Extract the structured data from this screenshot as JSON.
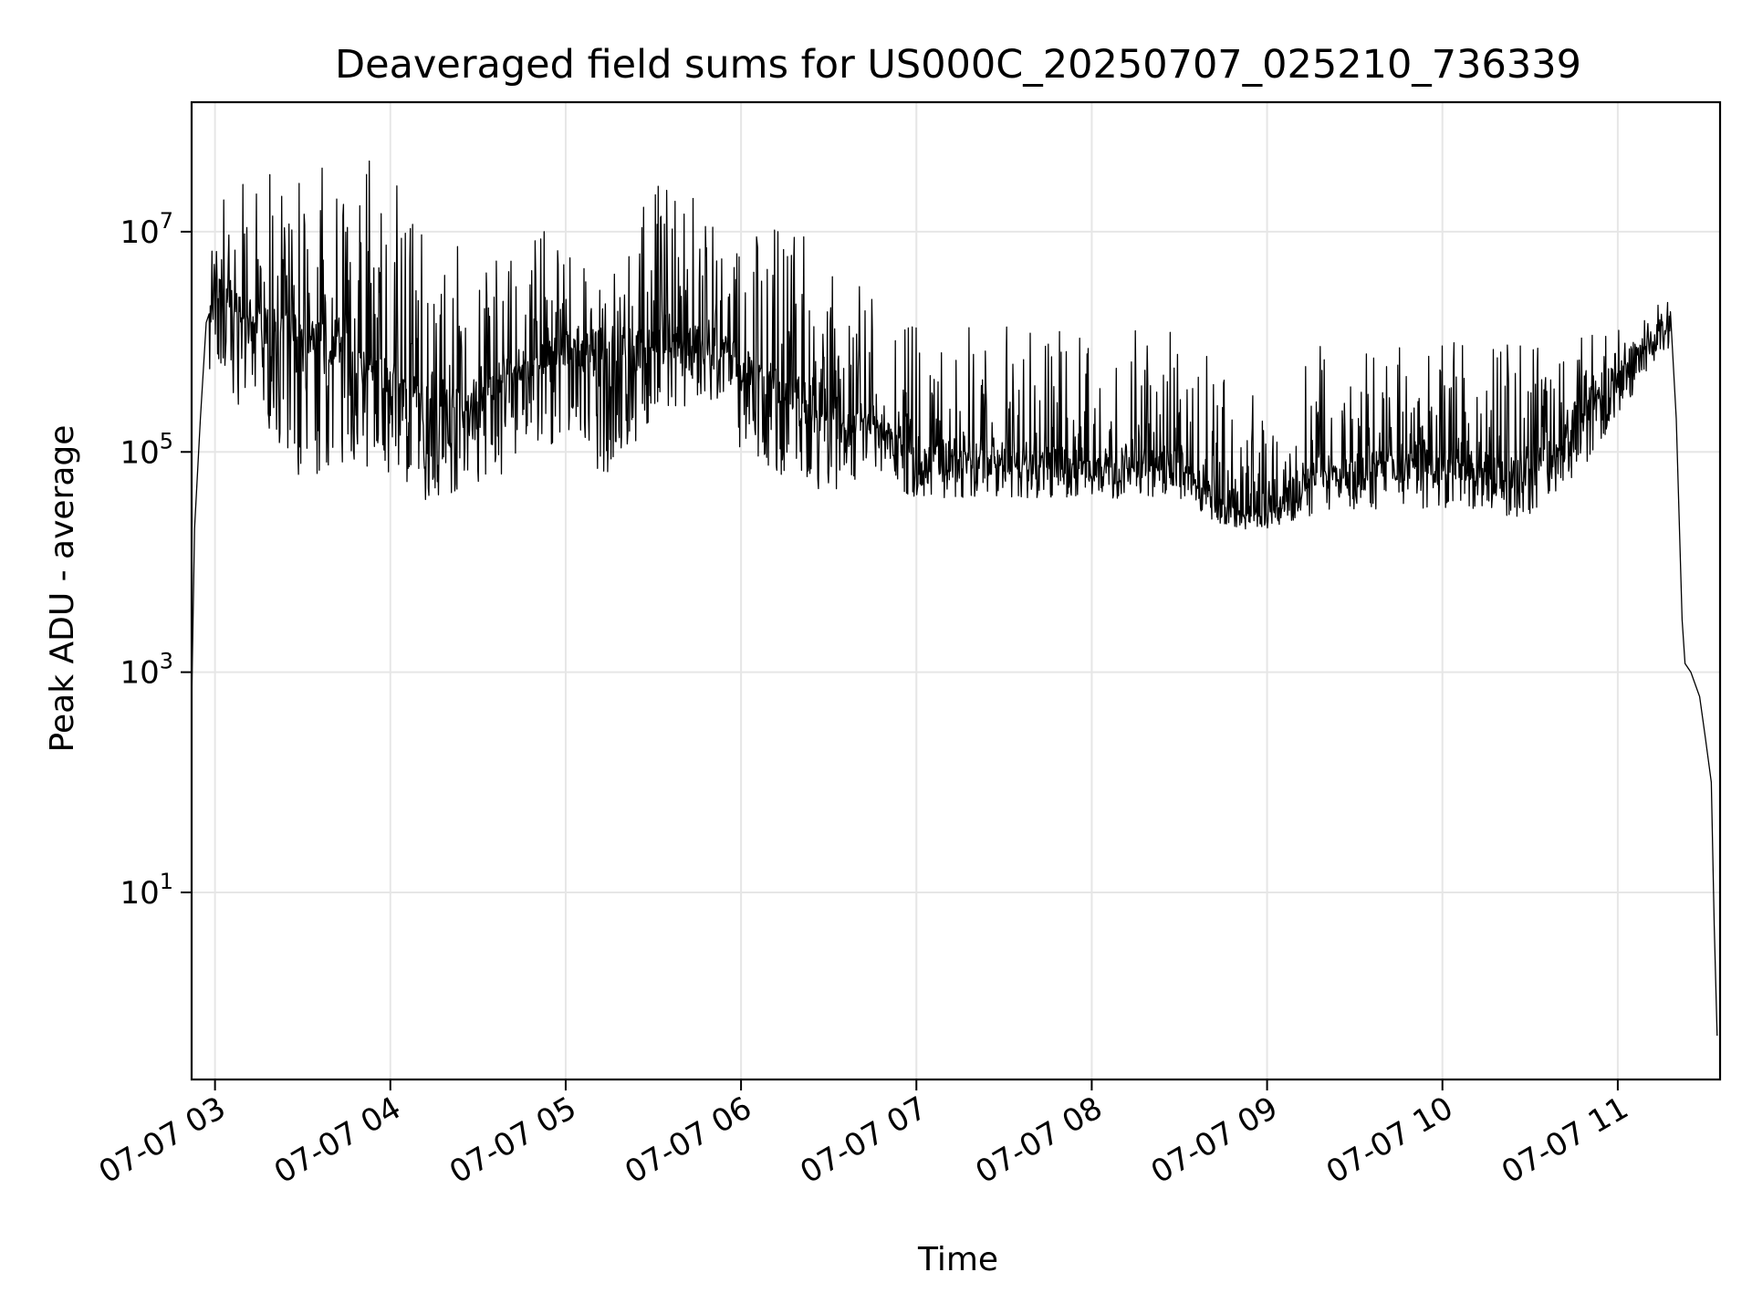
{
  "chart_data": {
    "type": "line",
    "title": "Deaveraged field sums for US000C_20250707_025210_736339",
    "xlabel": "Time",
    "ylabel": "Peak ADU - average",
    "y_scale": "log",
    "ylim": [
      0.2,
      150000000.0
    ],
    "xlim": [
      "07-07 02:52",
      "07-07 11:35"
    ],
    "grid": true,
    "legend": "none",
    "line_color": "#000000",
    "x_ticks": [
      {
        "value": "07-07 03:00",
        "label": "07-07 03"
      },
      {
        "value": "07-07 04:00",
        "label": "07-07 04"
      },
      {
        "value": "07-07 05:00",
        "label": "07-07 05"
      },
      {
        "value": "07-07 06:00",
        "label": "07-07 06"
      },
      {
        "value": "07-07 07:00",
        "label": "07-07 07"
      },
      {
        "value": "07-07 08:00",
        "label": "07-07 08"
      },
      {
        "value": "07-07 09:00",
        "label": "07-07 09"
      },
      {
        "value": "07-07 10:00",
        "label": "07-07 10"
      },
      {
        "value": "07-07 11:00",
        "label": "07-07 11"
      }
    ],
    "y_ticks": [
      {
        "value": 10,
        "base": "10",
        "exp": "1"
      },
      {
        "value": 1000,
        "base": "10",
        "exp": "3"
      },
      {
        "value": 100000,
        "base": "10",
        "exp": "5"
      },
      {
        "value": 10000000,
        "base": "10",
        "exp": "7"
      }
    ],
    "series": [
      {
        "points": [
          [
            "07-07 02:52",
            500
          ],
          [
            "07-07 02:53",
            20000
          ],
          [
            "07-07 02:55",
            200000
          ],
          [
            "07-07 02:57",
            1500000
          ],
          [
            "07-07 03:00",
            3000000
          ],
          [
            "07-07 03:07",
            2000000
          ],
          [
            "07-07 03:15",
            1500000
          ],
          [
            "07-07 03:22",
            1300000
          ],
          [
            "07-07 03:30",
            1200000
          ],
          [
            "07-07 03:37",
            1000000
          ],
          [
            "07-07 03:45",
            800000
          ],
          [
            "07-07 03:52",
            550000
          ],
          [
            "07-07 04:00",
            450000
          ],
          [
            "07-07 04:07",
            350000
          ],
          [
            "07-07 04:15",
            280000
          ],
          [
            "07-07 04:22",
            280000
          ],
          [
            "07-07 04:30",
            320000
          ],
          [
            "07-07 04:37",
            450000
          ],
          [
            "07-07 04:45",
            600000
          ],
          [
            "07-07 04:52",
            750000
          ],
          [
            "07-07 05:00",
            850000
          ],
          [
            "07-07 05:07",
            900000
          ],
          [
            "07-07 05:15",
            900000
          ],
          [
            "07-07 05:22",
            950000
          ],
          [
            "07-07 05:30",
            1000000
          ],
          [
            "07-07 05:37",
            1000000
          ],
          [
            "07-07 05:45",
            1000000
          ],
          [
            "07-07 05:52",
            900000
          ],
          [
            "07-07 06:00",
            650000
          ],
          [
            "07-07 06:07",
            500000
          ],
          [
            "07-07 06:15",
            380000
          ],
          [
            "07-07 06:22",
            300000
          ],
          [
            "07-07 06:30",
            250000
          ],
          [
            "07-07 06:37",
            200000
          ],
          [
            "07-07 06:45",
            170000
          ],
          [
            "07-07 06:52",
            140000
          ],
          [
            "07-07 07:00",
            100000
          ],
          [
            "07-07 07:07",
            95000
          ],
          [
            "07-07 07:15",
            90000
          ],
          [
            "07-07 07:22",
            90000
          ],
          [
            "07-07 07:30",
            90000
          ],
          [
            "07-07 07:37",
            85000
          ],
          [
            "07-07 07:45",
            85000
          ],
          [
            "07-07 07:52",
            85000
          ],
          [
            "07-07 08:00",
            80000
          ],
          [
            "07-07 08:07",
            80000
          ],
          [
            "07-07 08:15",
            80000
          ],
          [
            "07-07 08:22",
            75000
          ],
          [
            "07-07 08:30",
            70000
          ],
          [
            "07-07 08:37",
            55000
          ],
          [
            "07-07 08:45",
            35000
          ],
          [
            "07-07 08:52",
            28000
          ],
          [
            "07-07 09:00",
            30000
          ],
          [
            "07-07 09:07",
            35000
          ],
          [
            "07-07 09:15",
            60000
          ],
          [
            "07-07 09:22",
            70000
          ],
          [
            "07-07 09:30",
            75000
          ],
          [
            "07-07 09:37",
            80000
          ],
          [
            "07-07 09:45",
            80000
          ],
          [
            "07-07 09:52",
            80000
          ],
          [
            "07-07 10:00",
            80000
          ],
          [
            "07-07 10:07",
            75000
          ],
          [
            "07-07 10:15",
            70000
          ],
          [
            "07-07 10:22",
            65000
          ],
          [
            "07-07 10:30",
            70000
          ],
          [
            "07-07 10:37",
            90000
          ],
          [
            "07-07 10:45",
            150000
          ],
          [
            "07-07 10:52",
            300000
          ],
          [
            "07-07 11:00",
            500000
          ],
          [
            "07-07 11:07",
            800000
          ],
          [
            "07-07 11:15",
            1300000
          ],
          [
            "07-07 11:18",
            1200000
          ],
          [
            "07-07 11:20",
            200000
          ],
          [
            "07-07 11:22",
            3000
          ],
          [
            "07-07 11:23",
            1200
          ],
          [
            "07-07 11:25",
            1000
          ],
          [
            "07-07 11:28",
            600
          ],
          [
            "07-07 11:30",
            250
          ],
          [
            "07-07 11:32",
            100
          ],
          [
            "07-07 11:33",
            5
          ],
          [
            "07-07 11:34",
            0.5
          ]
        ],
        "noise_start": "07-07 02:58",
        "noise_end": "07-07 11:18",
        "peaks": [
          [
            "07-07 03:00",
            20000000
          ],
          [
            "07-07 03:05",
            30000000
          ],
          [
            "07-07 03:10",
            40000000
          ],
          [
            "07-07 03:20",
            45000000
          ],
          [
            "07-07 03:30",
            50000000
          ],
          [
            "07-07 03:40",
            45000000
          ],
          [
            "07-07 03:50",
            40000000
          ],
          [
            "07-07 03:55",
            60000000
          ],
          [
            "07-07 04:00",
            30000000
          ],
          [
            "07-07 04:10",
            25000000
          ],
          [
            "07-07 04:20",
            10000000
          ],
          [
            "07-07 04:35",
            5000000
          ],
          [
            "07-07 04:45",
            15000000
          ],
          [
            "07-07 05:00",
            8000000
          ],
          [
            "07-07 05:15",
            4000000
          ],
          [
            "07-07 05:25",
            15000000
          ],
          [
            "07-07 05:35",
            40000000
          ],
          [
            "07-07 05:45",
            20000000
          ],
          [
            "07-07 06:00",
            8000000
          ],
          [
            "07-07 06:15",
            15000000
          ],
          [
            "07-07 06:30",
            5000000
          ],
          [
            "07-07 06:45",
            3000000
          ],
          [
            "07-07 07:00",
            1500000
          ],
          [
            "07-07 08:30",
            1300000
          ],
          [
            "07-07 08:50",
            700000
          ],
          [
            "07-07 09:05",
            150000
          ],
          [
            "07-07 09:15",
            900000
          ],
          [
            "07-07 09:40",
            1000000
          ],
          [
            "07-07 10:00",
            1000000
          ],
          [
            "07-07 10:30",
            1000000
          ],
          [
            "07-07 10:55",
            1200000
          ],
          [
            "07-07 11:10",
            1800000
          ],
          [
            "07-07 11:15",
            2500000
          ]
        ],
        "troughs": [
          [
            "07-07 03:00",
            400000
          ],
          [
            "07-07 03:20",
            150000
          ],
          [
            "07-07 03:30",
            50000
          ],
          [
            "07-07 03:45",
            80000
          ],
          [
            "07-07 04:00",
            60000
          ],
          [
            "07-07 04:10",
            35000
          ],
          [
            "07-07 04:20",
            40000
          ],
          [
            "07-07 04:40",
            60000
          ],
          [
            "07-07 05:00",
            100000
          ],
          [
            "07-07 05:15",
            60000
          ],
          [
            "07-07 05:30",
            200000
          ],
          [
            "07-07 05:50",
            300000
          ],
          [
            "07-07 06:00",
            100000
          ],
          [
            "07-07 06:15",
            50000
          ],
          [
            "07-07 06:30",
            45000
          ],
          [
            "07-07 07:00",
            38000
          ],
          [
            "07-07 07:30",
            38000
          ],
          [
            "07-07 08:00",
            38000
          ],
          [
            "07-07 08:30",
            38000
          ],
          [
            "07-07 08:45",
            20000
          ],
          [
            "07-07 09:00",
            22000
          ],
          [
            "07-07 09:15",
            25000
          ],
          [
            "07-07 09:30",
            30000
          ],
          [
            "07-07 10:00",
            30000
          ],
          [
            "07-07 10:30",
            25000
          ],
          [
            "07-07 10:50",
            80000
          ],
          [
            "07-07 11:00",
            200000
          ],
          [
            "07-07 11:15",
            800000
          ]
        ]
      }
    ]
  }
}
